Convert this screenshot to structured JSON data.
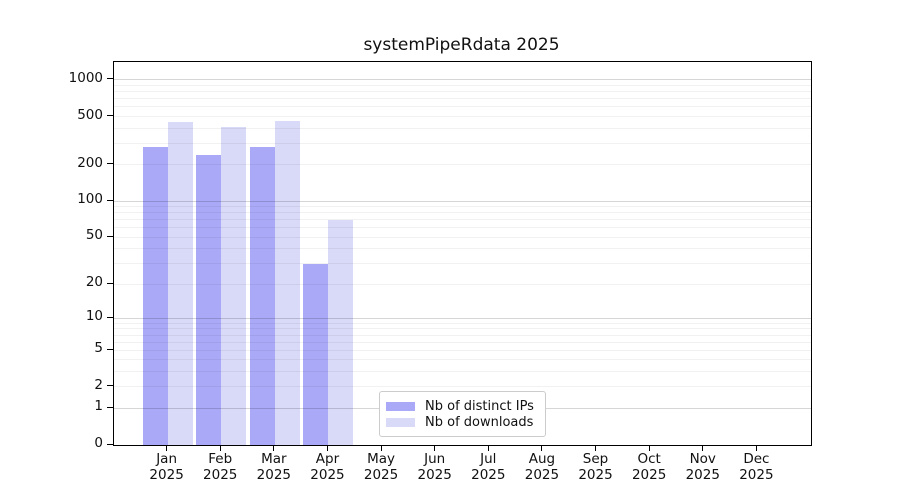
{
  "title": "systemPipeRdata 2025",
  "legend": {
    "items": [
      {
        "label": "Nb of distinct IPs",
        "color": "#a9a9f8"
      },
      {
        "label": "Nb of downloads",
        "color": "#d9d9f8"
      }
    ]
  },
  "chart_data": {
    "type": "bar",
    "title": "systemPipeRdata 2025",
    "categories": [
      "Jan",
      "Feb",
      "Mar",
      "Apr",
      "May",
      "Jun",
      "Jul",
      "Aug",
      "Sep",
      "Oct",
      "Nov",
      "Dec"
    ],
    "year": "2025",
    "series": [
      {
        "name": "Nb of distinct IPs",
        "color": "#a9a9f8",
        "values": [
          280,
          240,
          280,
          30,
          0,
          0,
          0,
          0,
          0,
          0,
          0,
          0
        ]
      },
      {
        "name": "Nb of downloads",
        "color": "#d9d9f8",
        "values": [
          450,
          410,
          460,
          70,
          0,
          0,
          0,
          0,
          0,
          0,
          0,
          0
        ]
      }
    ],
    "yscale": "log1p",
    "yticks": [
      0,
      1,
      2,
      5,
      10,
      20,
      50,
      100,
      200,
      500,
      1000
    ],
    "ylim": [
      0,
      1400
    ],
    "xlabel": "",
    "ylabel": "",
    "grid": "horizontal, minor + major (powers of 10)",
    "legend_position": "bottom-center"
  }
}
